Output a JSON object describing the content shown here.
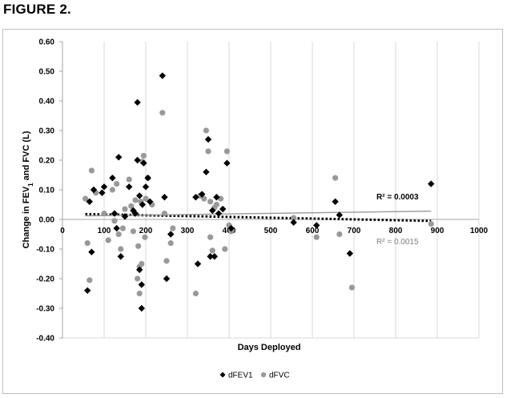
{
  "figure_title": "FIGURE 2.",
  "chart_data": {
    "type": "scatter",
    "xlabel": "Days Deployed",
    "ylabel_prefix": "Change in FEV",
    "ylabel_sub": "1",
    "ylabel_suffix": " and FVC (L)",
    "xlim": [
      0,
      1000
    ],
    "ylim": [
      -0.4,
      0.6
    ],
    "x_ticks": [
      "0",
      "100",
      "200",
      "300",
      "400",
      "500",
      "600",
      "700",
      "800",
      "900",
      "1000"
    ],
    "y_ticks": [
      "-0.40",
      "-0.30",
      "-0.20",
      "-0.10",
      "0.00",
      "0.10",
      "0.20",
      "0.30",
      "0.40",
      "0.50",
      "0.60"
    ],
    "grid": "vertical",
    "legend_position": "bottom",
    "series": [
      {
        "name": "dFEV1",
        "color": "#000000",
        "marker": "diamond",
        "trendline": {
          "style": "dotted",
          "color": "#000000",
          "x": [
            55,
            885
          ],
          "y": [
            0.018,
            -0.005
          ],
          "r2_label": "R² = 0.0003"
        },
        "points": [
          [
            60,
            -0.24
          ],
          [
            65,
            0.06
          ],
          [
            70,
            -0.11
          ],
          [
            75,
            0.1
          ],
          [
            95,
            0.09
          ],
          [
            100,
            0.11
          ],
          [
            120,
            0.14
          ],
          [
            125,
            0.02
          ],
          [
            130,
            -0.03
          ],
          [
            135,
            0.21
          ],
          [
            140,
            -0.125
          ],
          [
            150,
            0.01
          ],
          [
            160,
            0.11
          ],
          [
            170,
            0.03
          ],
          [
            175,
            0.02
          ],
          [
            180,
            0.395
          ],
          [
            180,
            0.2
          ],
          [
            185,
            -0.17
          ],
          [
            185,
            0.08
          ],
          [
            190,
            -0.3
          ],
          [
            190,
            -0.22
          ],
          [
            192,
            0.05
          ],
          [
            195,
            0.19
          ],
          [
            200,
            0.11
          ],
          [
            205,
            0.14
          ],
          [
            210,
            0.06
          ],
          [
            240,
            0.485
          ],
          [
            245,
            0.075
          ],
          [
            250,
            -0.2
          ],
          [
            260,
            -0.05
          ],
          [
            320,
            0.075
          ],
          [
            325,
            -0.15
          ],
          [
            335,
            0.085
          ],
          [
            345,
            0.16
          ],
          [
            350,
            0.27
          ],
          [
            355,
            -0.125
          ],
          [
            360,
            0.03
          ],
          [
            365,
            -0.125
          ],
          [
            370,
            0.075
          ],
          [
            375,
            0.02
          ],
          [
            385,
            0.035
          ],
          [
            395,
            0.19
          ],
          [
            405,
            -0.03
          ],
          [
            555,
            -0.01
          ],
          [
            610,
            -0.02
          ],
          [
            655,
            0.06
          ],
          [
            665,
            0.015
          ],
          [
            690,
            -0.115
          ],
          [
            885,
            0.12
          ]
        ]
      },
      {
        "name": "dFVC",
        "color": "#999999",
        "marker": "circle",
        "trendline": {
          "style": "solid",
          "color": "#999999",
          "x": [
            55,
            885
          ],
          "y": [
            0.012,
            0.028
          ],
          "r2_label": "R² = 0.0015"
        },
        "points": [
          [
            55,
            0.07
          ],
          [
            60,
            -0.08
          ],
          [
            65,
            -0.205
          ],
          [
            70,
            0.165
          ],
          [
            80,
            0.09
          ],
          [
            100,
            0.02
          ],
          [
            110,
            -0.07
          ],
          [
            120,
            0.1
          ],
          [
            125,
            -0.005
          ],
          [
            130,
            0.12
          ],
          [
            135,
            -0.05
          ],
          [
            140,
            -0.1
          ],
          [
            145,
            -0.03
          ],
          [
            150,
            0.035
          ],
          [
            160,
            0.135
          ],
          [
            165,
            0.045
          ],
          [
            170,
            -0.04
          ],
          [
            175,
            0.065
          ],
          [
            180,
            -0.2
          ],
          [
            182,
            -0.09
          ],
          [
            185,
            -0.16
          ],
          [
            185,
            -0.25
          ],
          [
            188,
            0.06
          ],
          [
            190,
            -0.15
          ],
          [
            192,
            0.195
          ],
          [
            195,
            0.215
          ],
          [
            198,
            -0.06
          ],
          [
            200,
            0.07
          ],
          [
            205,
            0.14
          ],
          [
            215,
            0.05
          ],
          [
            240,
            0.36
          ],
          [
            245,
            0.02
          ],
          [
            250,
            -0.14
          ],
          [
            260,
            -0.08
          ],
          [
            265,
            -0.03
          ],
          [
            320,
            -0.25
          ],
          [
            330,
            0.08
          ],
          [
            340,
            0.07
          ],
          [
            345,
            0.3
          ],
          [
            350,
            0.23
          ],
          [
            355,
            0.06
          ],
          [
            355,
            -0.06
          ],
          [
            360,
            -0.105
          ],
          [
            365,
            0.04
          ],
          [
            370,
            0.05
          ],
          [
            380,
            0.07
          ],
          [
            390,
            -0.1
          ],
          [
            395,
            0.23
          ],
          [
            400,
            -0.02
          ],
          [
            405,
            -0.04
          ],
          [
            555,
            0.005
          ],
          [
            610,
            -0.06
          ],
          [
            655,
            0.14
          ],
          [
            665,
            -0.05
          ],
          [
            695,
            -0.23
          ],
          [
            885,
            -0.015
          ]
        ]
      }
    ]
  }
}
